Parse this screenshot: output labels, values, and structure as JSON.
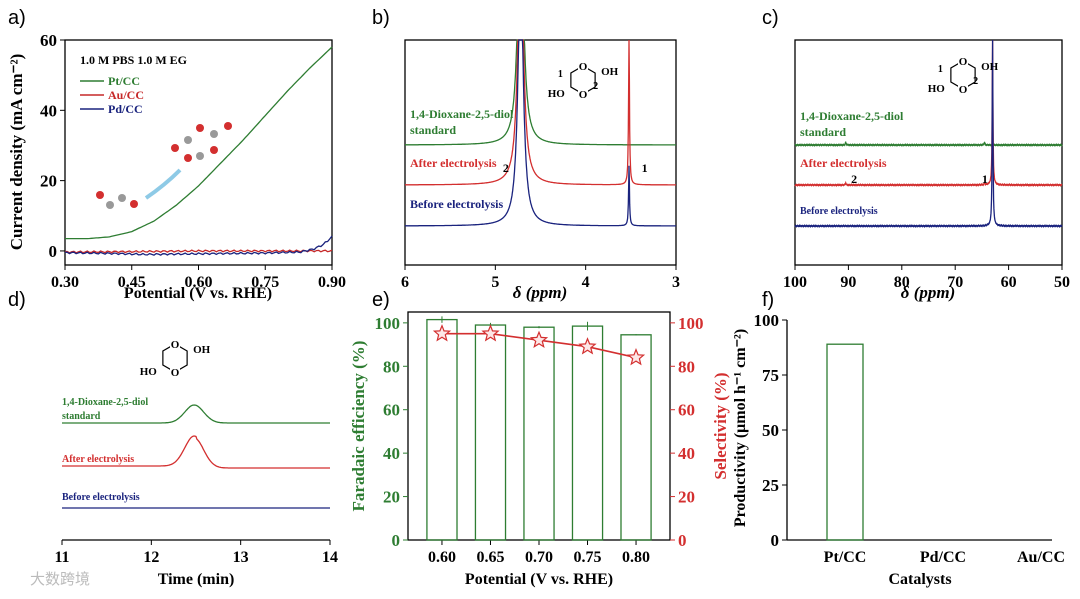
{
  "panel_labels": [
    "a)",
    "b)",
    "c)",
    "d)",
    "e)",
    "f)"
  ],
  "watermark": "大数跨境",
  "colors": {
    "green": "#2e7d32",
    "red": "#d32f2f",
    "blue": "#1a237e",
    "axis": "#000000"
  },
  "chart_data": [
    {
      "panel": "a",
      "type": "line",
      "xlabel": "Potential (V vs. RHE)",
      "ylabel": "Current density (mA cm⁻²)",
      "xlim": [
        0.3,
        0.9
      ],
      "ylim": [
        -4,
        60
      ],
      "xticks": [
        "0.30",
        "0.45",
        "0.60",
        "0.75",
        "0.90"
      ],
      "yticks": [
        "0",
        "20",
        "40",
        "60"
      ],
      "legend_title": "1.0 M PBS 1.0 M EG",
      "legend_placement": "top-left",
      "series": [
        {
          "name": "Pt/CC",
          "color": "#2e7d32",
          "x": [
            0.3,
            0.35,
            0.4,
            0.45,
            0.5,
            0.55,
            0.6,
            0.65,
            0.7,
            0.75,
            0.8,
            0.85,
            0.9
          ],
          "y": [
            3.5,
            3.5,
            4.0,
            5.5,
            8.5,
            13,
            18.5,
            25,
            31.5,
            38.5,
            45.5,
            52,
            58
          ]
        },
        {
          "name": "Au/CC",
          "color": "#c62828",
          "x": [
            0.3,
            0.45,
            0.6,
            0.75,
            0.9
          ],
          "y": [
            -0.3,
            -0.2,
            0,
            0,
            0
          ]
        },
        {
          "name": "Pd/CC",
          "color": "#1a237e",
          "x": [
            0.3,
            0.4,
            0.48,
            0.6,
            0.75,
            0.83,
            0.86,
            0.88,
            0.9
          ],
          "y": [
            -0.5,
            -0.7,
            -1.0,
            -0.8,
            -0.6,
            -0.3,
            0.6,
            1.8,
            4.0
          ]
        }
      ]
    },
    {
      "panel": "b",
      "type": "line",
      "xlabel": "δ (ppm)",
      "xlim": [
        6,
        3
      ],
      "xticks": [
        "6",
        "5",
        "4",
        "3"
      ],
      "structure_labels": [
        "1",
        "2",
        "OH",
        "HO"
      ],
      "series": [
        {
          "name": "1,4-Dioxane-2,5-diol standard",
          "color": "#2e7d32",
          "peaks_ppm": [
            4.72
          ]
        },
        {
          "name": "After electrolysis",
          "color": "#d32f2f",
          "peaks_ppm": [
            4.72,
            3.52
          ],
          "annotations": [
            {
              "text": "2",
              "ppm": 5.2
            },
            {
              "text": "1",
              "ppm": 3.38
            }
          ]
        },
        {
          "name": "Before electrolysis",
          "color": "#1a237e",
          "peaks_ppm": [
            4.72,
            3.52
          ]
        }
      ]
    },
    {
      "panel": "c",
      "type": "line",
      "xlabel": "δ (ppm)",
      "xlim": [
        100,
        50
      ],
      "xticks": [
        "100",
        "90",
        "80",
        "70",
        "60",
        "50"
      ],
      "structure_labels": [
        "1",
        "2",
        "OH",
        "HO"
      ],
      "series": [
        {
          "name": "1,4-Dioxane-2,5-diol standard",
          "color": "#2e7d32",
          "peaks_ppm": [
            90.5,
            64.5
          ]
        },
        {
          "name": "After electrolysis",
          "color": "#d32f2f",
          "peaks_ppm": [
            90.5,
            64.5,
            63.0
          ],
          "annotations": [
            {
              "text": "2",
              "ppm": 89.5
            },
            {
              "text": "1",
              "ppm": 65
            }
          ]
        },
        {
          "name": "Before electrolysis",
          "color": "#1a237e",
          "peaks_ppm": [
            63.0
          ]
        }
      ]
    },
    {
      "panel": "d",
      "type": "line",
      "xlabel": "Time (min)",
      "xlim": [
        11,
        14
      ],
      "xticks": [
        "11",
        "12",
        "13",
        "14"
      ],
      "structure_labels": [
        "OH",
        "HO"
      ],
      "series": [
        {
          "name": "1,4-Dioxane-2,5-diol standard",
          "color": "#2e7d32",
          "peak_time": 12.48
        },
        {
          "name": "After electrolysis",
          "color": "#d32f2f",
          "peak_time": 12.48
        },
        {
          "name": "Before electrolysis",
          "color": "#1a237e"
        }
      ]
    },
    {
      "panel": "e",
      "type": "bar",
      "xlabel": "Potential (V vs. RHE)",
      "ylabel": "Faradaic efficiency (%)",
      "y2label": "Selectivity (%)",
      "categories": [
        "0.60",
        "0.65",
        "0.70",
        "0.75",
        "0.80"
      ],
      "ylim": [
        0,
        105
      ],
      "yticks": [
        "0",
        "20",
        "40",
        "60",
        "80",
        "100"
      ],
      "series": [
        {
          "name": "Faradaic efficiency",
          "type": "bar",
          "color": "#2e7d32",
          "values": [
            101.5,
            99,
            98,
            98.5,
            94.5
          ],
          "errors": [
            1.5,
            1,
            0.5,
            2,
            0.3
          ]
        },
        {
          "name": "Selectivity",
          "type": "line",
          "marker": "star",
          "color": "#d32f2f",
          "values": [
            95,
            95,
            92,
            89,
            84
          ]
        }
      ]
    },
    {
      "panel": "f",
      "type": "bar",
      "xlabel": "Catalysts",
      "ylabel": "Productivity (μmol h⁻¹ cm⁻²)",
      "categories": [
        "Pt/CC",
        "Pd/CC",
        "Au/CC"
      ],
      "values": [
        89,
        0,
        0
      ],
      "ylim": [
        0,
        100
      ],
      "yticks": [
        "0",
        "25",
        "50",
        "75",
        "100"
      ],
      "color": "#2e7d32"
    }
  ]
}
